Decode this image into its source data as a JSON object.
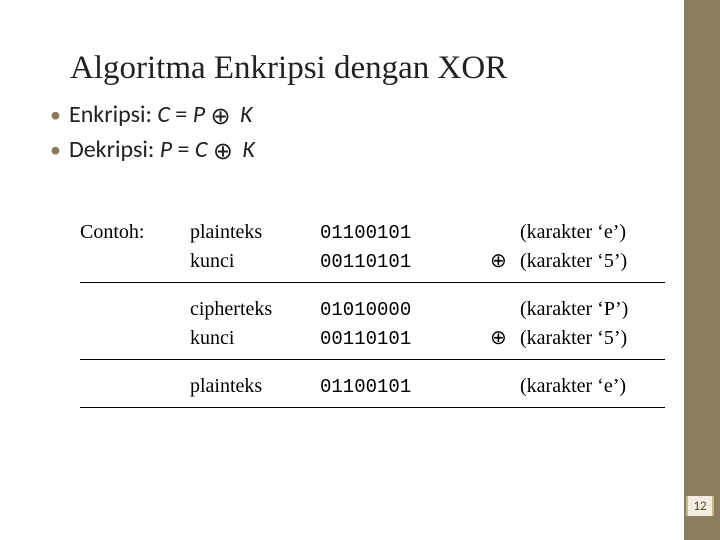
{
  "title": "Algoritma Enkripsi dengan XOR",
  "bullets": {
    "b1_label": "Enkripsi: ",
    "b1_eq_lhs": "C",
    "b1_eq_eqs": " = ",
    "b1_eq_rhs1": " P ",
    "b1_eq_rhs2": " K",
    "b2_label": "Dekripsi: ",
    "b2_eq_lhs": "P",
    "b2_eq_eqs": " = ",
    "b2_eq_rhs1": "C ",
    "b2_eq_rhs2": " K"
  },
  "table": {
    "r1": {
      "a": "Contoh:",
      "b": "plainteks",
      "c": "01100101",
      "d": "",
      "e": "(karakter ‘e’)"
    },
    "r2": {
      "a": "",
      "b": "kunci",
      "c": "00110101",
      "d": "⊕",
      "e": "(karakter ‘5’)"
    },
    "r3": {
      "a": "",
      "b": "cipherteks",
      "c": "01010000",
      "d": "",
      "e": "(karakter ‘P’)"
    },
    "r4": {
      "a": "",
      "b": "kunci",
      "c": "00110101",
      "d": "⊕",
      "e": "(karakter ‘5’)"
    },
    "r5": {
      "a": "",
      "b": "plainteks",
      "c": "01100101",
      "d": "",
      "e": "(karakter ‘e’)"
    }
  },
  "page_number": "12",
  "colors": {
    "band": "#8a7e5f",
    "bullet_mark": "#8a7a5a",
    "pagenum_bg": "#f2ede0"
  }
}
